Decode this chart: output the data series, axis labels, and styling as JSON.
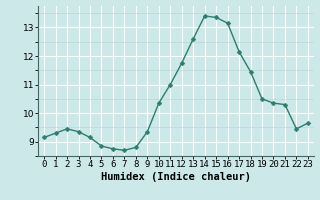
{
  "x": [
    0,
    1,
    2,
    3,
    4,
    5,
    6,
    7,
    8,
    9,
    10,
    11,
    12,
    13,
    14,
    15,
    16,
    17,
    18,
    19,
    20,
    21,
    22,
    23
  ],
  "y": [
    9.15,
    9.3,
    9.45,
    9.35,
    9.15,
    8.85,
    8.75,
    8.7,
    8.8,
    9.35,
    10.35,
    11.0,
    11.75,
    12.6,
    13.4,
    13.35,
    13.15,
    12.15,
    11.45,
    10.5,
    10.35,
    10.3,
    9.45,
    9.65
  ],
  "line_color": "#2e7d6e",
  "marker": "D",
  "marker_size": 2.5,
  "bg_color": "#cde8e8",
  "grid_major_color": "#ffffff",
  "grid_minor_color": "#b8d8d8",
  "xlabel": "Humidex (Indice chaleur)",
  "xlim": [
    -0.5,
    23.5
  ],
  "ylim": [
    8.5,
    13.75
  ],
  "yticks": [
    9,
    10,
    11,
    12,
    13
  ],
  "xticks": [
    0,
    1,
    2,
    3,
    4,
    5,
    6,
    7,
    8,
    9,
    10,
    11,
    12,
    13,
    14,
    15,
    16,
    17,
    18,
    19,
    20,
    21,
    22,
    23
  ],
  "xlabel_fontsize": 7.5,
  "tick_fontsize": 6.5,
  "line_width": 1.0
}
